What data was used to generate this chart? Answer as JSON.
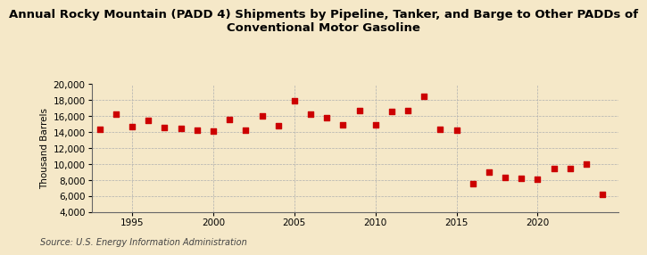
{
  "title": "Annual Rocky Mountain (PADD 4) Shipments by Pipeline, Tanker, and Barge to Other PADDs of\nConventional Motor Gasoline",
  "ylabel": "Thousand Barrels",
  "source": "Source: U.S. Energy Information Administration",
  "background_color": "#f5e8c8",
  "plot_background_color": "#f5e8c8",
  "marker_color": "#cc0000",
  "years": [
    1993,
    1994,
    1995,
    1996,
    1997,
    1998,
    1999,
    2000,
    2001,
    2002,
    2003,
    2004,
    2005,
    2006,
    2007,
    2008,
    2009,
    2010,
    2011,
    2012,
    2013,
    2014,
    2015,
    2016,
    2017,
    2018,
    2019,
    2020,
    2021,
    2022,
    2023,
    2024
  ],
  "values": [
    14300,
    16200,
    14700,
    15500,
    14600,
    14500,
    14200,
    14100,
    15600,
    14200,
    16000,
    14800,
    17900,
    16200,
    15800,
    14900,
    16700,
    14900,
    16600,
    16700,
    18500,
    14300,
    14200,
    7500,
    9000,
    8300,
    8200,
    8100,
    9400,
    9400,
    10000,
    6200
  ],
  "ylim": [
    4000,
    20000
  ],
  "yticks": [
    4000,
    6000,
    8000,
    10000,
    12000,
    14000,
    16000,
    18000,
    20000
  ],
  "xlim": [
    1992.5,
    2025
  ],
  "xticks": [
    1995,
    2000,
    2005,
    2010,
    2015,
    2020
  ],
  "title_fontsize": 9.5,
  "axis_fontsize": 7.5,
  "source_fontsize": 7
}
